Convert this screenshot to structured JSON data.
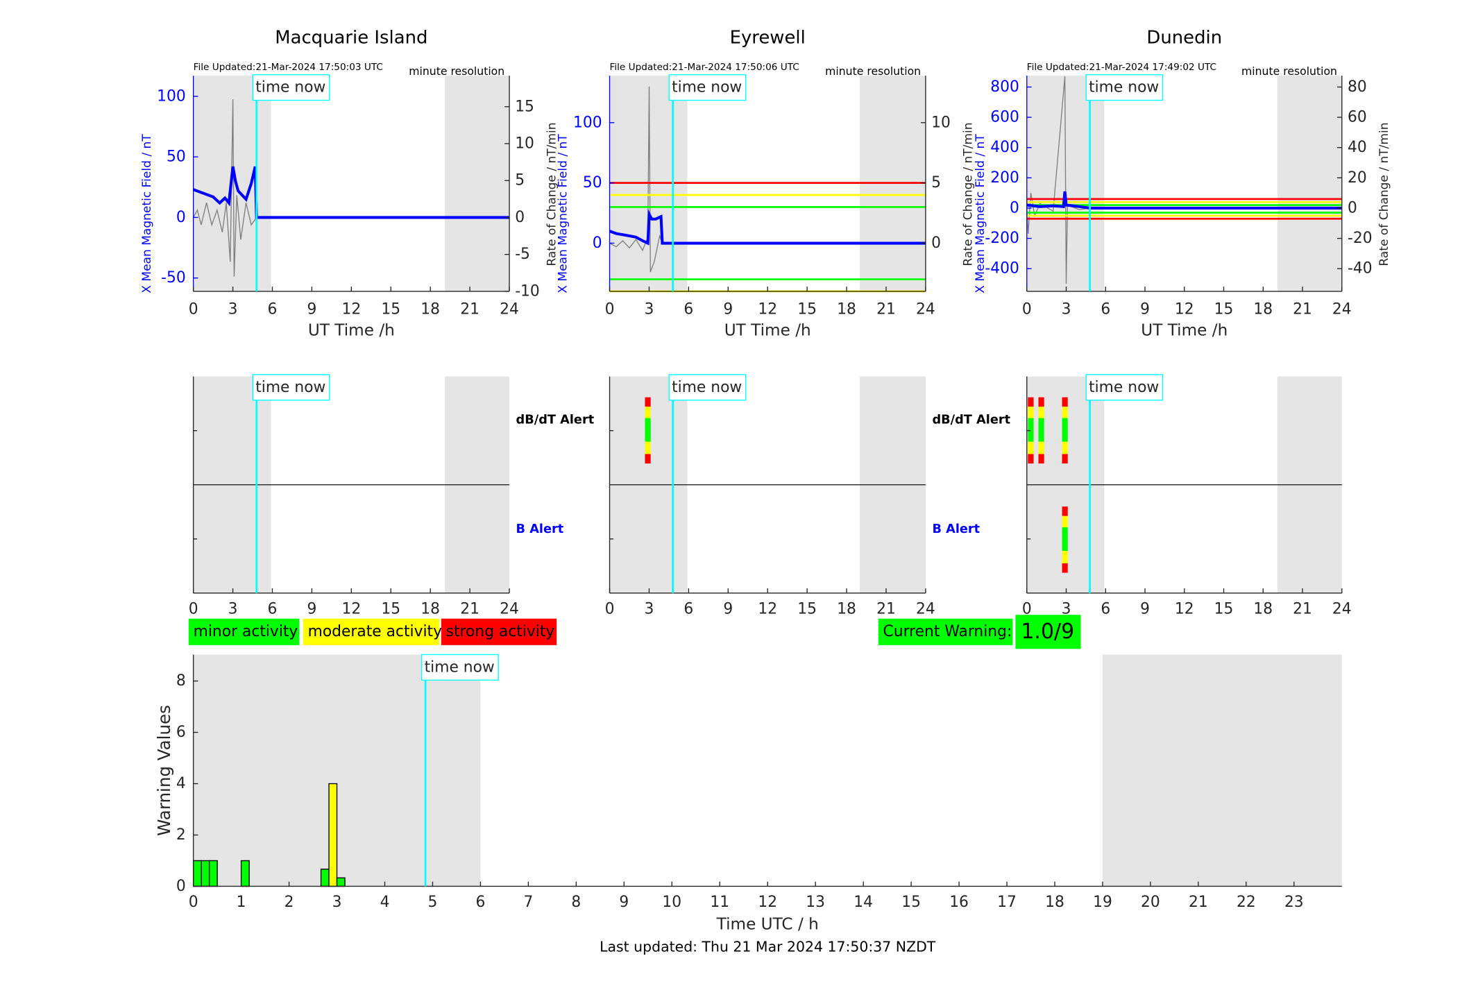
{
  "chart_data": [
    {
      "type": "line",
      "title": "Macquarie Island",
      "file_updated": "File Updated:21-Mar-2024 17:50:03 UTC",
      "resolution": "minute resolution",
      "xlabel": "UT Time /h",
      "ylabel": "X Mean Magnetic Field / nT",
      "y2label": "Rate of Change / nT/min",
      "xlim": [
        0,
        24
      ],
      "xticks": [
        0,
        3,
        6,
        9,
        12,
        15,
        18,
        21,
        24
      ],
      "ylim": [
        -61,
        117
      ],
      "yticks": [
        -50,
        0,
        50,
        100
      ],
      "y2lim": [
        -10,
        19.2
      ],
      "y2ticks": [
        -10,
        -5,
        0,
        5,
        10,
        15
      ],
      "shaded": [
        [
          0,
          5.9
        ],
        [
          19.1,
          24
        ]
      ],
      "now": 4.8,
      "now_label": "time now",
      "series": [
        {
          "color": "#0000ff",
          "x": [
            0,
            0.5,
            1,
            1.5,
            2,
            2.4,
            2.7,
            3,
            3.2,
            3.4,
            4,
            4.4,
            4.7,
            4.8,
            24
          ],
          "values": [
            23,
            21,
            19,
            17,
            12,
            16,
            12,
            42,
            30,
            22,
            15,
            28,
            42,
            0,
            0
          ]
        },
        {
          "color": "#808080",
          "axis": "y2",
          "x": [
            0,
            0.3,
            0.6,
            1,
            1.4,
            1.8,
            2.2,
            2.5,
            2.8,
            3,
            3.1,
            3.3,
            3.6,
            4,
            4.4,
            4.8
          ],
          "values": [
            0,
            1,
            -1,
            2,
            -1,
            1,
            -2,
            2,
            -6,
            16,
            -8,
            3,
            -3,
            2,
            -1,
            0
          ]
        }
      ],
      "thresholds": []
    },
    {
      "type": "line",
      "title": "Eyrewell",
      "file_updated": "File Updated:21-Mar-2024 17:50:06 UTC",
      "resolution": "minute resolution",
      "xlabel": "UT Time /h",
      "ylabel": "X Mean Magnetic Field / nT",
      "y2label": "Rate of Change / nT/min",
      "xlim": [
        0,
        24
      ],
      "xticks": [
        0,
        3,
        6,
        9,
        12,
        15,
        18,
        21,
        24
      ],
      "ylim": [
        -40,
        139
      ],
      "yticks": [
        0,
        50,
        100
      ],
      "y2lim": [
        -4,
        13.9
      ],
      "y2ticks": [
        0,
        5,
        10
      ],
      "shaded": [
        [
          0,
          5.9
        ],
        [
          19,
          24
        ]
      ],
      "now": 4.8,
      "now_label": "time now",
      "series": [
        {
          "color": "#0000ff",
          "x": [
            0,
            0.5,
            1,
            1.5,
            2,
            2.5,
            2.9,
            3,
            3.2,
            3.5,
            3.9,
            4,
            24
          ],
          "values": [
            10,
            8,
            7,
            6,
            5,
            2,
            0,
            24,
            20,
            20,
            22,
            0,
            0
          ]
        },
        {
          "color": "#808080",
          "axis": "y2",
          "x": [
            0,
            0.5,
            1,
            1.5,
            2,
            2.5,
            2.9,
            3,
            3.1,
            3.4,
            3.8,
            4
          ],
          "values": [
            0,
            -0.3,
            0.2,
            -0.4,
            0.3,
            -0.6,
            0.5,
            13,
            -2.4,
            -1.5,
            0.6,
            0
          ]
        }
      ],
      "thresholds": [
        {
          "value": 5,
          "color": "#ff0000"
        },
        {
          "value": 4,
          "color": "#ffff00"
        },
        {
          "value": 3,
          "color": "#00ff00"
        },
        {
          "value": -3,
          "color": "#00ff00"
        },
        {
          "value": -4,
          "color": "#ffff00"
        }
      ]
    },
    {
      "type": "line",
      "title": "Dunedin",
      "file_updated": "File Updated:21-Mar-2024 17:49:02 UTC",
      "resolution": "minute resolution",
      "xlabel": "UT Time /h",
      "ylabel": "X Mean Magnetic Field / nT",
      "y2label": "Rate of Change / nT/min",
      "xlim": [
        0,
        24
      ],
      "xticks": [
        0,
        3,
        6,
        9,
        12,
        15,
        18,
        21,
        24
      ],
      "ylim": [
        -550,
        875
      ],
      "yticks": [
        -400,
        -200,
        0,
        200,
        400,
        600,
        800
      ],
      "y2lim": [
        -55,
        87.5
      ],
      "y2ticks": [
        -40,
        -20,
        0,
        20,
        40,
        60,
        80
      ],
      "shaded": [
        [
          0,
          5.9
        ],
        [
          19.1,
          24
        ]
      ],
      "now": 4.8,
      "now_label": "time now",
      "series": [
        {
          "color": "#0000ff",
          "x": [
            0,
            1,
            2,
            2.8,
            2.9,
            3,
            3.5,
            4,
            4.8,
            24
          ],
          "values": [
            20,
            10,
            15,
            10,
            110,
            20,
            15,
            10,
            0,
            0
          ]
        },
        {
          "color": "#808080",
          "axis": "y2",
          "x": [
            0,
            0.1,
            0.3,
            0.6,
            1,
            2,
            2.9,
            3,
            3.1,
            4,
            4.8
          ],
          "values": [
            0,
            -17,
            10,
            -5,
            3,
            -2,
            87,
            -50,
            2,
            -1,
            0
          ]
        }
      ],
      "thresholds": [
        {
          "value": 6,
          "color": "#ff0000"
        },
        {
          "value": 4,
          "color": "#ffff00"
        },
        {
          "value": 2,
          "color": "#00ff00"
        },
        {
          "value": -3,
          "color": "#00ff00"
        },
        {
          "value": -5,
          "color": "#ffff00"
        },
        {
          "value": -7,
          "color": "#ff0000"
        }
      ]
    },
    {
      "type": "alert",
      "dbdt_label": "dB/dT Alert",
      "b_label": "B Alert",
      "xlim": [
        0,
        24
      ],
      "xticks": [
        0,
        3,
        6,
        9,
        12,
        15,
        18,
        21,
        24
      ],
      "shaded": [
        [
          0,
          5.9
        ],
        [
          19.1,
          24
        ]
      ],
      "now": 4.8,
      "now_label": "time now",
      "alert_colors": [
        "#ff0000",
        "#ffff00",
        "#00ff00",
        "#ffff00",
        "#ff0000"
      ],
      "dbdt_alerts": [],
      "b_alerts": []
    },
    {
      "type": "alert",
      "dbdt_label": "dB/dT Alert",
      "b_label": "B Alert",
      "xlim": [
        0,
        24
      ],
      "xticks": [
        0,
        3,
        6,
        9,
        12,
        15,
        18,
        21,
        24
      ],
      "shaded": [
        [
          0,
          5.9
        ],
        [
          19,
          24
        ]
      ],
      "now": 4.8,
      "now_label": "time now",
      "alert_colors": [
        "#ff0000",
        "#ffff00",
        "#00ff00",
        "#ffff00",
        "#ff0000"
      ],
      "dbdt_alerts": [
        2.9
      ],
      "b_alerts": []
    },
    {
      "type": "alert",
      "xlim": [
        0,
        24
      ],
      "xticks": [
        0,
        3,
        6,
        9,
        12,
        15,
        18,
        21,
        24
      ],
      "shaded": [
        [
          0,
          5.9
        ],
        [
          19.1,
          24
        ]
      ],
      "now": 4.8,
      "now_label": "time now",
      "alert_colors": [
        "#ff0000",
        "#ffff00",
        "#00ff00",
        "#ffff00",
        "#ff0000"
      ],
      "dbdt_alerts": [
        0.3,
        1.1,
        2.9
      ],
      "b_alerts": [
        2.9
      ]
    },
    {
      "type": "bar",
      "xlabel": "Time UTC / h",
      "ylabel": "Warning Values",
      "xlim": [
        0,
        24
      ],
      "xticks": [
        0,
        1,
        2,
        3,
        4,
        5,
        6,
        7,
        8,
        9,
        10,
        11,
        12,
        13,
        14,
        15,
        16,
        17,
        18,
        19,
        20,
        21,
        22,
        23
      ],
      "ylim": [
        0,
        9.03
      ],
      "yticks": [
        0,
        2,
        4,
        6,
        8
      ],
      "shaded": [
        [
          0,
          6
        ],
        [
          19,
          24
        ]
      ],
      "now": 4.85,
      "now_label": "time now",
      "x": [
        0,
        0.1667,
        0.3333,
        1,
        2.6667,
        2.8333,
        3
      ],
      "x_end": [
        0.1667,
        0.3333,
        0.5,
        1.1667,
        2.8333,
        3,
        3.1667
      ],
      "values": [
        1,
        1,
        1,
        1,
        0.67,
        4,
        0.33
      ],
      "colors": [
        "#00ff00",
        "#00ff00",
        "#00ff00",
        "#00ff00",
        "#00ff00",
        "#ffff00",
        "#00ff00"
      ]
    }
  ],
  "legend": [
    {
      "label": "minor activity",
      "color": "#00ff00"
    },
    {
      "label": "moderate activity",
      "color": "#ffff00"
    },
    {
      "label": "strong activity",
      "color": "#ff0000"
    }
  ],
  "current_warning": {
    "label": "Current Warning:",
    "value": "1.0/9",
    "color": "#00ff00"
  },
  "footer": "Last updated: Thu 21 Mar 2024 17:50:37 NZDT"
}
